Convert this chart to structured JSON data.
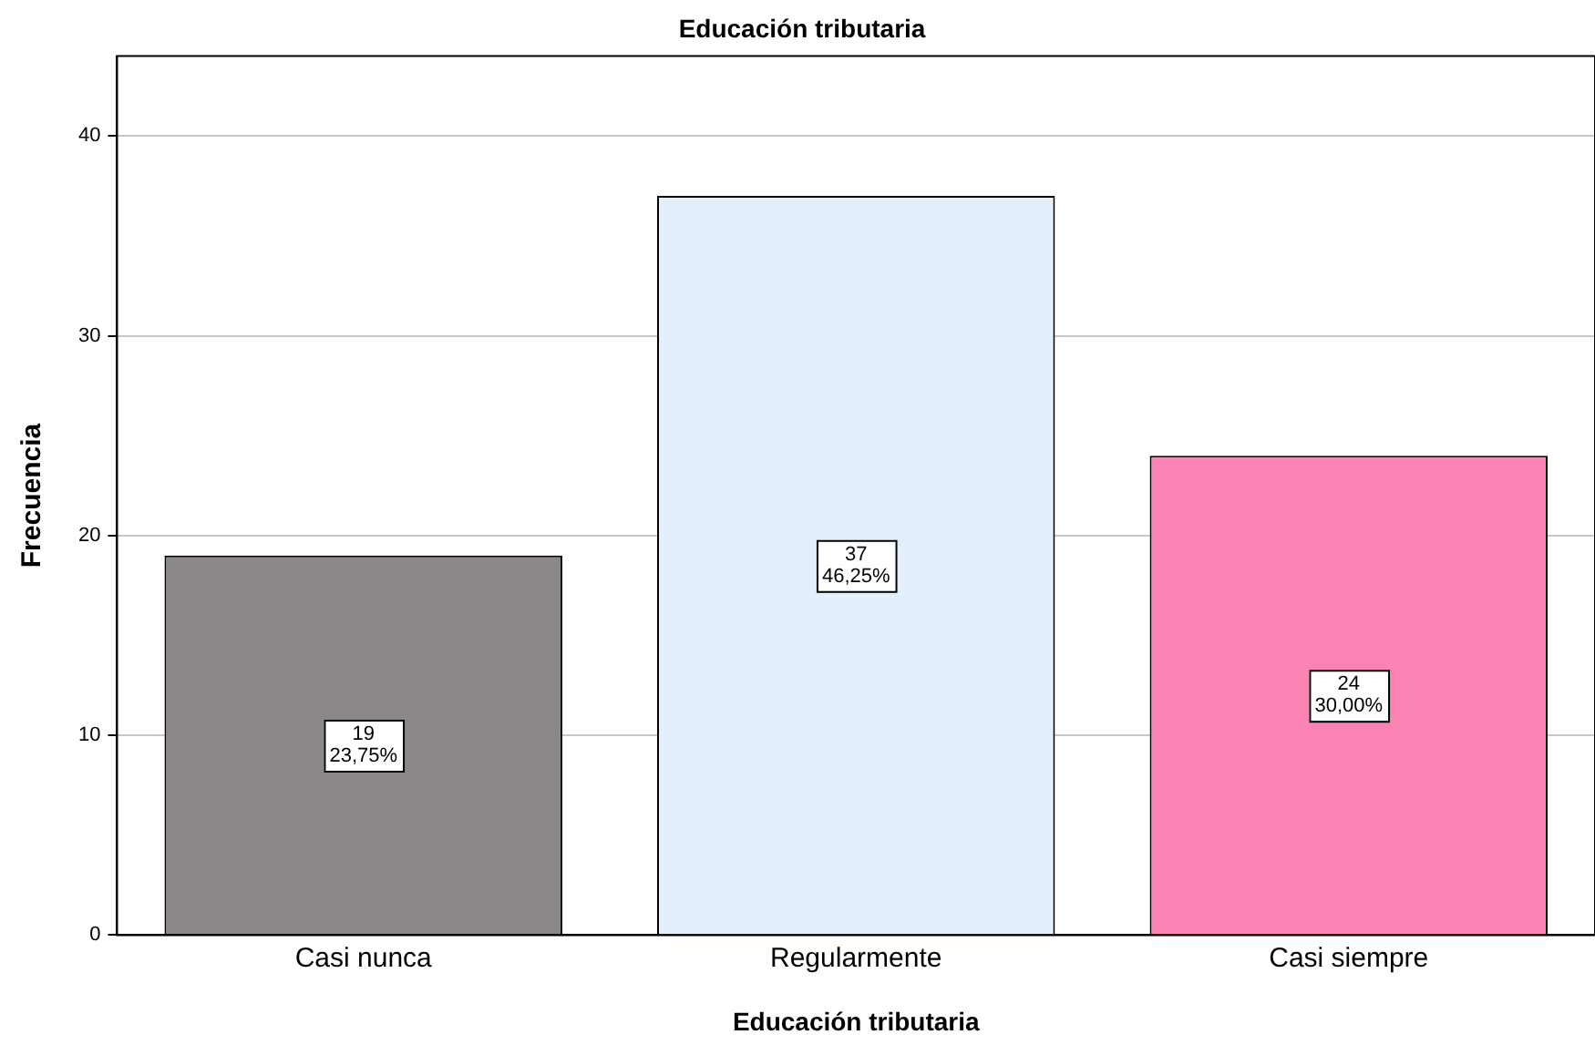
{
  "chart_data": {
    "type": "bar",
    "title": "Educación tributaria",
    "xlabel": "Educación tributaria",
    "ylabel": "Frecuencia",
    "categories": [
      "Casi nunca",
      "Regularmente",
      "Casi siempre"
    ],
    "values": [
      19,
      37,
      24
    ],
    "colors": [
      "#8c8888",
      "#e3effb",
      "#fc84b4"
    ],
    "value_labels": [
      "19\n23,75%",
      "37\n46,25%",
      "24\n30,00%"
    ],
    "ylim": [
      0,
      44
    ],
    "yticks": [
      0,
      10,
      20,
      30,
      40
    ],
    "grid": "y",
    "legend": false
  }
}
